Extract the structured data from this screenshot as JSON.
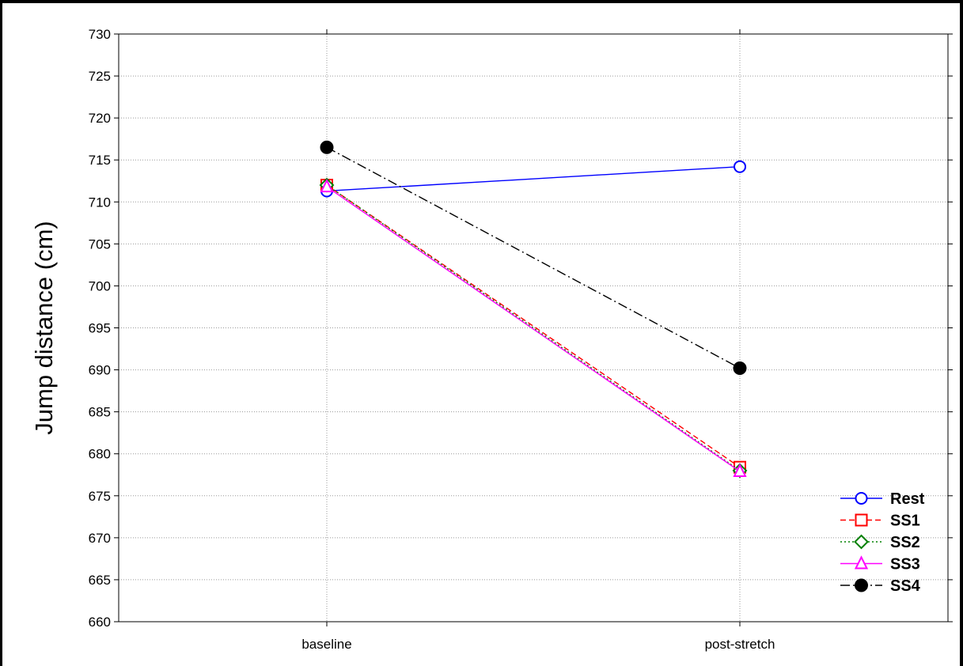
{
  "chart_data": {
    "type": "line",
    "title": "",
    "xlabel": "",
    "ylabel": "Jump distance (cm)",
    "categories": [
      "baseline",
      "post-stretch"
    ],
    "ylim": [
      660,
      730
    ],
    "yticks": [
      660,
      665,
      670,
      675,
      680,
      685,
      690,
      695,
      700,
      705,
      710,
      715,
      720,
      725,
      730
    ],
    "grid": true,
    "legend_position": "bottom-right",
    "series": [
      {
        "name": "Rest",
        "values": [
          711.3,
          714.2
        ],
        "color": "#0000ff",
        "marker": "circle-open",
        "line": "solid"
      },
      {
        "name": "SS1",
        "values": [
          712.0,
          678.4
        ],
        "color": "#ff0000",
        "marker": "square-open",
        "line": "dashed"
      },
      {
        "name": "SS2",
        "values": [
          712.0,
          678.0
        ],
        "color": "#008000",
        "marker": "diamond-open",
        "line": "dotted"
      },
      {
        "name": "SS3",
        "values": [
          711.8,
          677.9
        ],
        "color": "#ff00ff",
        "marker": "triangle-open",
        "line": "solid"
      },
      {
        "name": "SS4",
        "values": [
          716.5,
          690.2
        ],
        "color": "#000000",
        "marker": "circle-filled",
        "line": "dashdot"
      }
    ]
  }
}
